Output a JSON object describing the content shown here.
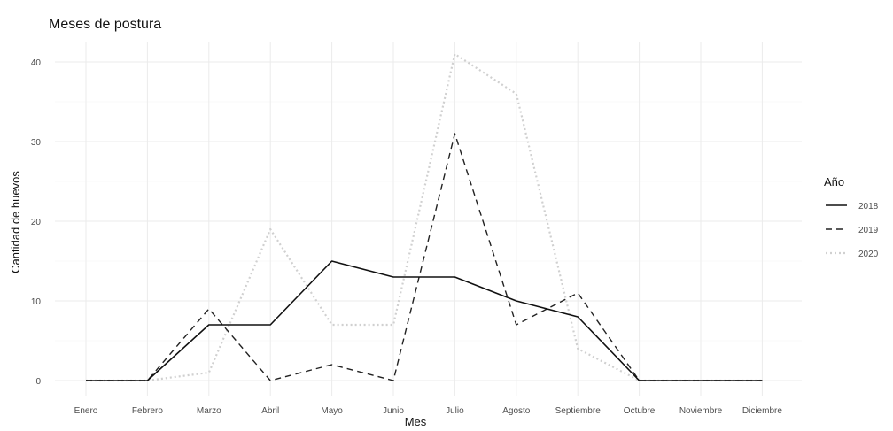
{
  "chart_data": {
    "type": "line",
    "title": "Meses de postura",
    "xlabel": "Mes",
    "ylabel": "Cantidad de huevos",
    "categories": [
      "Enero",
      "Febrero",
      "Marzo",
      "Abril",
      "Mayo",
      "Junio",
      "Julio",
      "Agosto",
      "Septiembre",
      "Octubre",
      "Noviembre",
      "Diciembre"
    ],
    "ylim": [
      0,
      42
    ],
    "yticks": [
      "0",
      "10",
      "20",
      "30",
      "40"
    ],
    "grid": true,
    "legend": {
      "title": "Año",
      "placement": "right"
    },
    "series": [
      {
        "name": "2018",
        "values": [
          0,
          0,
          7,
          7,
          15,
          13,
          13,
          10,
          8,
          0,
          0,
          0
        ],
        "color": "#111111",
        "dash": "solid"
      },
      {
        "name": "2019",
        "values": [
          0,
          0,
          9,
          0,
          2,
          0,
          31,
          7,
          11,
          0,
          0,
          0
        ],
        "color": "#222222",
        "dash": "dashed"
      },
      {
        "name": "2020",
        "values": [
          0,
          0,
          1,
          19,
          7,
          7,
          41,
          36,
          4,
          0,
          0,
          0
        ],
        "color": "#d0d0d0",
        "dash": "dotted"
      }
    ]
  }
}
